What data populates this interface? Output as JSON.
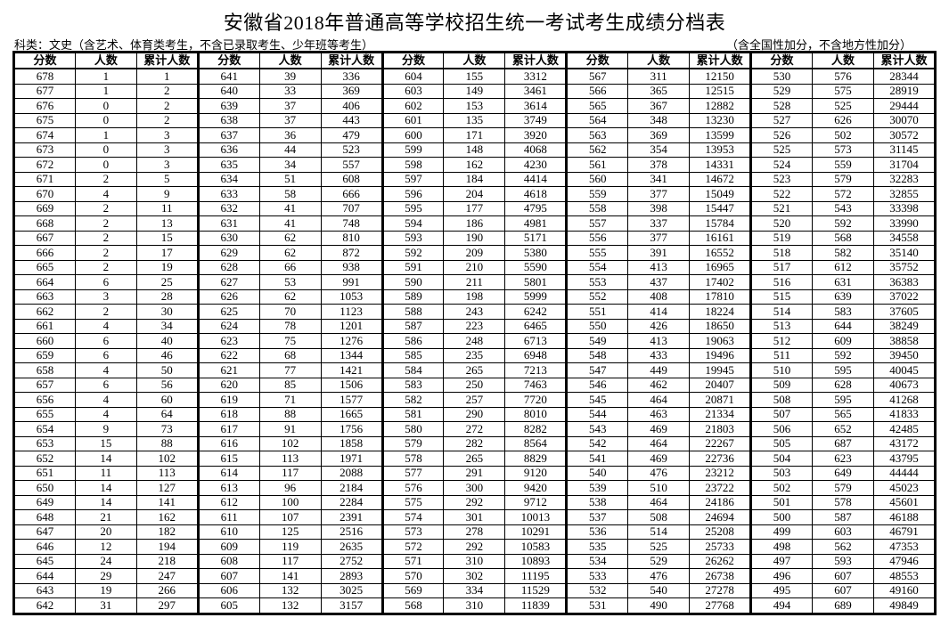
{
  "title": "安徽省2018年普通高等学校招生统一考试考生成绩分档表",
  "subtitle_left": "科类：文史（含艺术、体育类考生，不含已录取考生、少年班等考生）",
  "subtitle_right": "（含全国性加分，不含地方性加分）",
  "headers": [
    "分数",
    "人数",
    "累计人数"
  ],
  "groups": [
    {
      "rows": [
        [
          678,
          1,
          1
        ],
        [
          677,
          1,
          2
        ],
        [
          676,
          0,
          2
        ],
        [
          675,
          0,
          2
        ],
        [
          674,
          1,
          3
        ],
        [
          673,
          0,
          3
        ],
        [
          672,
          0,
          3
        ],
        [
          671,
          2,
          5
        ],
        [
          670,
          4,
          9
        ],
        [
          669,
          2,
          11
        ],
        [
          668,
          2,
          13
        ],
        [
          667,
          2,
          15
        ],
        [
          666,
          2,
          17
        ],
        [
          665,
          2,
          19
        ],
        [
          664,
          6,
          25
        ],
        [
          663,
          3,
          28
        ],
        [
          662,
          2,
          30
        ],
        [
          661,
          4,
          34
        ],
        [
          660,
          6,
          40
        ],
        [
          659,
          6,
          46
        ],
        [
          658,
          4,
          50
        ],
        [
          657,
          6,
          56
        ],
        [
          656,
          4,
          60
        ],
        [
          655,
          4,
          64
        ],
        [
          654,
          9,
          73
        ],
        [
          653,
          15,
          88
        ],
        [
          652,
          14,
          102
        ],
        [
          651,
          11,
          113
        ],
        [
          650,
          14,
          127
        ],
        [
          649,
          14,
          141
        ],
        [
          648,
          21,
          162
        ],
        [
          647,
          20,
          182
        ],
        [
          646,
          12,
          194
        ],
        [
          645,
          24,
          218
        ],
        [
          644,
          29,
          247
        ],
        [
          643,
          19,
          266
        ],
        [
          642,
          31,
          297
        ]
      ]
    },
    {
      "rows": [
        [
          641,
          39,
          336
        ],
        [
          640,
          33,
          369
        ],
        [
          639,
          37,
          406
        ],
        [
          638,
          37,
          443
        ],
        [
          637,
          36,
          479
        ],
        [
          636,
          44,
          523
        ],
        [
          635,
          34,
          557
        ],
        [
          634,
          51,
          608
        ],
        [
          633,
          58,
          666
        ],
        [
          632,
          41,
          707
        ],
        [
          631,
          41,
          748
        ],
        [
          630,
          62,
          810
        ],
        [
          629,
          62,
          872
        ],
        [
          628,
          66,
          938
        ],
        [
          627,
          53,
          991
        ],
        [
          626,
          62,
          1053
        ],
        [
          625,
          70,
          1123
        ],
        [
          624,
          78,
          1201
        ],
        [
          623,
          75,
          1276
        ],
        [
          622,
          68,
          1344
        ],
        [
          621,
          77,
          1421
        ],
        [
          620,
          85,
          1506
        ],
        [
          619,
          71,
          1577
        ],
        [
          618,
          88,
          1665
        ],
        [
          617,
          91,
          1756
        ],
        [
          616,
          102,
          1858
        ],
        [
          615,
          113,
          1971
        ],
        [
          614,
          117,
          2088
        ],
        [
          613,
          96,
          2184
        ],
        [
          612,
          100,
          2284
        ],
        [
          611,
          107,
          2391
        ],
        [
          610,
          125,
          2516
        ],
        [
          609,
          119,
          2635
        ],
        [
          608,
          117,
          2752
        ],
        [
          607,
          141,
          2893
        ],
        [
          606,
          132,
          3025
        ],
        [
          605,
          132,
          3157
        ]
      ]
    },
    {
      "rows": [
        [
          604,
          155,
          3312
        ],
        [
          603,
          149,
          3461
        ],
        [
          602,
          153,
          3614
        ],
        [
          601,
          135,
          3749
        ],
        [
          600,
          171,
          3920
        ],
        [
          599,
          148,
          4068
        ],
        [
          598,
          162,
          4230
        ],
        [
          597,
          184,
          4414
        ],
        [
          596,
          204,
          4618
        ],
        [
          595,
          177,
          4795
        ],
        [
          594,
          186,
          4981
        ],
        [
          593,
          190,
          5171
        ],
        [
          592,
          209,
          5380
        ],
        [
          591,
          210,
          5590
        ],
        [
          590,
          211,
          5801
        ],
        [
          589,
          198,
          5999
        ],
        [
          588,
          243,
          6242
        ],
        [
          587,
          223,
          6465
        ],
        [
          586,
          248,
          6713
        ],
        [
          585,
          235,
          6948
        ],
        [
          584,
          265,
          7213
        ],
        [
          583,
          250,
          7463
        ],
        [
          582,
          257,
          7720
        ],
        [
          581,
          290,
          8010
        ],
        [
          580,
          272,
          8282
        ],
        [
          579,
          282,
          8564
        ],
        [
          578,
          265,
          8829
        ],
        [
          577,
          291,
          9120
        ],
        [
          576,
          300,
          9420
        ],
        [
          575,
          292,
          9712
        ],
        [
          574,
          301,
          10013
        ],
        [
          573,
          278,
          10291
        ],
        [
          572,
          292,
          10583
        ],
        [
          571,
          310,
          10893
        ],
        [
          570,
          302,
          11195
        ],
        [
          569,
          334,
          11529
        ],
        [
          568,
          310,
          11839
        ]
      ]
    },
    {
      "rows": [
        [
          567,
          311,
          12150
        ],
        [
          566,
          365,
          12515
        ],
        [
          565,
          367,
          12882
        ],
        [
          564,
          348,
          13230
        ],
        [
          563,
          369,
          13599
        ],
        [
          562,
          354,
          13953
        ],
        [
          561,
          378,
          14331
        ],
        [
          560,
          341,
          14672
        ],
        [
          559,
          377,
          15049
        ],
        [
          558,
          398,
          15447
        ],
        [
          557,
          337,
          15784
        ],
        [
          556,
          377,
          16161
        ],
        [
          555,
          391,
          16552
        ],
        [
          554,
          413,
          16965
        ],
        [
          553,
          437,
          17402
        ],
        [
          552,
          408,
          17810
        ],
        [
          551,
          414,
          18224
        ],
        [
          550,
          426,
          18650
        ],
        [
          549,
          413,
          19063
        ],
        [
          548,
          433,
          19496
        ],
        [
          547,
          449,
          19945
        ],
        [
          546,
          462,
          20407
        ],
        [
          545,
          464,
          20871
        ],
        [
          544,
          463,
          21334
        ],
        [
          543,
          469,
          21803
        ],
        [
          542,
          464,
          22267
        ],
        [
          541,
          469,
          22736
        ],
        [
          540,
          476,
          23212
        ],
        [
          539,
          510,
          23722
        ],
        [
          538,
          464,
          24186
        ],
        [
          537,
          508,
          24694
        ],
        [
          536,
          514,
          25208
        ],
        [
          535,
          525,
          25733
        ],
        [
          534,
          529,
          26262
        ],
        [
          533,
          476,
          26738
        ],
        [
          532,
          540,
          27278
        ],
        [
          531,
          490,
          27768
        ]
      ]
    },
    {
      "rows": [
        [
          530,
          576,
          28344
        ],
        [
          529,
          575,
          28919
        ],
        [
          528,
          525,
          29444
        ],
        [
          527,
          626,
          30070
        ],
        [
          526,
          502,
          30572
        ],
        [
          525,
          573,
          31145
        ],
        [
          524,
          559,
          31704
        ],
        [
          523,
          579,
          32283
        ],
        [
          522,
          572,
          32855
        ],
        [
          521,
          543,
          33398
        ],
        [
          520,
          592,
          33990
        ],
        [
          519,
          568,
          34558
        ],
        [
          518,
          582,
          35140
        ],
        [
          517,
          612,
          35752
        ],
        [
          516,
          631,
          36383
        ],
        [
          515,
          639,
          37022
        ],
        [
          514,
          583,
          37605
        ],
        [
          513,
          644,
          38249
        ],
        [
          512,
          609,
          38858
        ],
        [
          511,
          592,
          39450
        ],
        [
          510,
          595,
          40045
        ],
        [
          509,
          628,
          40673
        ],
        [
          508,
          595,
          41268
        ],
        [
          507,
          565,
          41833
        ],
        [
          506,
          652,
          42485
        ],
        [
          505,
          687,
          43172
        ],
        [
          504,
          623,
          43795
        ],
        [
          503,
          649,
          44444
        ],
        [
          502,
          579,
          45023
        ],
        [
          501,
          578,
          45601
        ],
        [
          500,
          587,
          46188
        ],
        [
          499,
          603,
          46791
        ],
        [
          498,
          562,
          47353
        ],
        [
          497,
          593,
          47946
        ],
        [
          496,
          607,
          48553
        ],
        [
          495,
          607,
          49160
        ],
        [
          494,
          689,
          49849
        ]
      ]
    }
  ]
}
